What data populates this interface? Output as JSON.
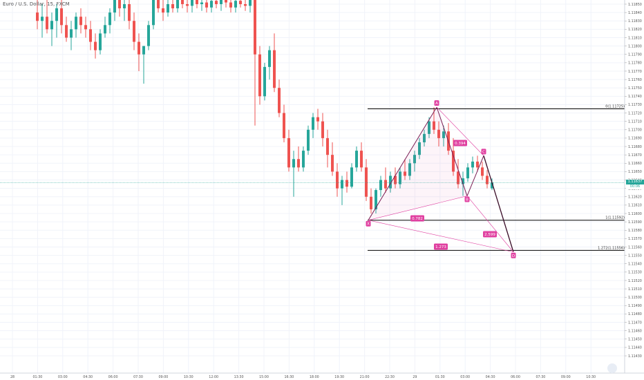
{
  "header": {
    "symbol_title": "Euro / U.S. Dollar, 15, FXCM"
  },
  "price_scale": {
    "ticks": [
      "1.11850",
      "1.11840",
      "1.11830",
      "1.11820",
      "1.11810",
      "1.11800",
      "1.11790",
      "1.11780",
      "1.11770",
      "1.11760",
      "1.11750",
      "1.11740",
      "1.11730",
      "1.11720",
      "1.11710",
      "1.11700",
      "1.11690",
      "1.11680",
      "1.11670",
      "1.11660",
      "1.11650",
      "1.11640",
      "1.11630",
      "1.11620",
      "1.11610",
      "1.11600",
      "1.11590",
      "1.11580",
      "1.11570",
      "1.11560",
      "1.11550",
      "1.11540",
      "1.11530",
      "1.11520",
      "1.11510",
      "1.11500",
      "1.11490",
      "1.11480",
      "1.11470",
      "1.11460",
      "1.11450",
      "1.11440",
      "1.11430"
    ],
    "current_price": "1.11637",
    "countdown": "00:06",
    "colors": {
      "up": "#26a69a",
      "down": "#ef5350"
    }
  },
  "time_scale": {
    "ticks": [
      "28",
      "01:30",
      "03:00",
      "04:30",
      "06:00",
      "07:30",
      "09:00",
      "10:30",
      "12:00",
      "13:30",
      "15:00",
      "16:30",
      "18:00",
      "19:30",
      "21:00",
      "22:30",
      "29",
      "01:30",
      "03:00",
      "04:30",
      "06:00",
      "07:30",
      "09:00",
      "10:30"
    ]
  },
  "levels": [
    {
      "label": "0(1.11725)",
      "price": 1.11725
    },
    {
      "label": "1(1.11592)",
      "price": 1.11592
    },
    {
      "label": "1.272(1.11556)",
      "price": 1.11556
    }
  ],
  "pattern": {
    "points": [
      {
        "name": "X",
        "price": 1.11592
      },
      {
        "name": "A",
        "price": 1.11727
      },
      {
        "name": "B",
        "price": 1.11621
      },
      {
        "name": "C",
        "price": 1.11669
      },
      {
        "name": "D",
        "price": 1.11554
      }
    ],
    "ratios": [
      {
        "label": "0.394",
        "legs": "A-C"
      },
      {
        "label": "0.782",
        "legs": "X-B"
      },
      {
        "label": "2.599",
        "legs": "B-D"
      },
      {
        "label": "1.273",
        "legs": "X-D"
      }
    ],
    "color": "#e040a0"
  },
  "chart_data": {
    "type": "candlestick",
    "title": "Euro / U.S. Dollar, 15, FXCM",
    "ylim": [
      1.1143,
      1.1186
    ],
    "candles": [
      [
        1.1184,
        1.1186,
        1.1182,
        1.1183
      ],
      [
        1.1183,
        1.1185,
        1.1181,
        1.11835
      ],
      [
        1.11835,
        1.1186,
        1.11815,
        1.1182
      ],
      [
        1.1182,
        1.1184,
        1.118,
        1.1183
      ],
      [
        1.1183,
        1.1185,
        1.1181,
        1.11845
      ],
      [
        1.11845,
        1.11855,
        1.11815,
        1.11825
      ],
      [
        1.11825,
        1.11835,
        1.11805,
        1.1181
      ],
      [
        1.1181,
        1.1183,
        1.11795,
        1.1182
      ],
      [
        1.1182,
        1.1184,
        1.1181,
        1.11835
      ],
      [
        1.11835,
        1.11845,
        1.11815,
        1.11825
      ],
      [
        1.11825,
        1.11835,
        1.1181,
        1.1182
      ],
      [
        1.1182,
        1.1183,
        1.11795,
        1.11805
      ],
      [
        1.11805,
        1.11815,
        1.11785,
        1.11795
      ],
      [
        1.11795,
        1.1182,
        1.1179,
        1.11815
      ],
      [
        1.11815,
        1.11835,
        1.1181,
        1.11825
      ],
      [
        1.11825,
        1.11845,
        1.11815,
        1.1184
      ],
      [
        1.1184,
        1.1186,
        1.1183,
        1.11855
      ],
      [
        1.11855,
        1.11865,
        1.11835,
        1.11845
      ],
      [
        1.11845,
        1.1186,
        1.1183,
        1.1185
      ],
      [
        1.1185,
        1.11855,
        1.1182,
        1.1183
      ],
      [
        1.1183,
        1.1184,
        1.11795,
        1.11805
      ],
      [
        1.11805,
        1.11815,
        1.1177,
        1.1179
      ],
      [
        1.1179,
        1.118,
        1.11755,
        1.118
      ],
      [
        1.118,
        1.1183,
        1.11795,
        1.11825
      ],
      [
        1.11825,
        1.1186,
        1.1182,
        1.11855
      ],
      [
        1.11855,
        1.1187,
        1.1184,
        1.11845
      ],
      [
        1.11845,
        1.11855,
        1.1183,
        1.1184
      ],
      [
        1.1184,
        1.1186,
        1.11835,
        1.1185
      ],
      [
        1.1185,
        1.1186,
        1.1184,
        1.11845
      ],
      [
        1.11845,
        1.1186,
        1.1184,
        1.11855
      ],
      [
        1.11855,
        1.11865,
        1.11845,
        1.1185
      ],
      [
        1.1185,
        1.1186,
        1.1184,
        1.11848
      ],
      [
        1.11848,
        1.11865,
        1.1184,
        1.11855
      ],
      [
        1.11855,
        1.11865,
        1.11845,
        1.1185
      ],
      [
        1.1185,
        1.1186,
        1.11842,
        1.11852
      ],
      [
        1.11852,
        1.11862,
        1.1184,
        1.11846
      ],
      [
        1.11846,
        1.1186,
        1.1184,
        1.11854
      ],
      [
        1.11854,
        1.11865,
        1.11845,
        1.1185
      ],
      [
        1.1185,
        1.1186,
        1.11842,
        1.11856
      ],
      [
        1.11856,
        1.11866,
        1.11846,
        1.11852
      ],
      [
        1.11852,
        1.11862,
        1.1184,
        1.11846
      ],
      [
        1.11846,
        1.11858,
        1.1184,
        1.11854
      ],
      [
        1.11854,
        1.11864,
        1.11846,
        1.1185
      ],
      [
        1.1185,
        1.1186,
        1.11842,
        1.11848
      ],
      [
        1.11848,
        1.11858,
        1.1184,
        1.11855
      ],
      [
        1.11855,
        1.11862,
        1.11705,
        1.1179
      ],
      [
        1.1179,
        1.118,
        1.1173,
        1.1174
      ],
      [
        1.1174,
        1.1178,
        1.11735,
        1.11775
      ],
      [
        1.11775,
        1.118,
        1.1176,
        1.11795
      ],
      [
        1.11795,
        1.11815,
        1.11745,
        1.1175
      ],
      [
        1.1175,
        1.1176,
        1.11715,
        1.1172
      ],
      [
        1.1172,
        1.1173,
        1.11685,
        1.1169
      ],
      [
        1.1169,
        1.117,
        1.1165,
        1.11655
      ],
      [
        1.11655,
        1.11675,
        1.1162,
        1.11665
      ],
      [
        1.11665,
        1.1168,
        1.1165,
        1.11655
      ],
      [
        1.11655,
        1.1168,
        1.1165,
        1.11675
      ],
      [
        1.11675,
        1.11705,
        1.1167,
        1.117
      ],
      [
        1.117,
        1.1172,
        1.1169,
        1.11715
      ],
      [
        1.11715,
        1.11725,
        1.117,
        1.1171
      ],
      [
        1.1171,
        1.1172,
        1.1168,
        1.1169
      ],
      [
        1.1169,
        1.117,
        1.11655,
        1.1167
      ],
      [
        1.1167,
        1.11685,
        1.11645,
        1.1165
      ],
      [
        1.1165,
        1.1166,
        1.1162,
        1.1163
      ],
      [
        1.1163,
        1.11645,
        1.1161,
        1.1164
      ],
      [
        1.1164,
        1.1165,
        1.11625,
        1.11632
      ],
      [
        1.11632,
        1.1166,
        1.1163,
        1.11655
      ],
      [
        1.11655,
        1.1168,
        1.1165,
        1.11675
      ],
      [
        1.11675,
        1.11685,
        1.1165,
        1.11655
      ],
      [
        1.11655,
        1.11665,
        1.11615,
        1.1162
      ],
      [
        1.1162,
        1.1163,
        1.116,
        1.11605
      ],
      [
        1.11605,
        1.1163,
        1.116,
        1.11628
      ],
      [
        1.11628,
        1.11645,
        1.1162,
        1.1164
      ],
      [
        1.1164,
        1.11655,
        1.11625,
        1.1163
      ],
      [
        1.1163,
        1.1165,
        1.11625,
        1.11645
      ],
      [
        1.11645,
        1.11655,
        1.1163,
        1.11635
      ],
      [
        1.11635,
        1.11655,
        1.1163,
        1.1165
      ],
      [
        1.1165,
        1.11665,
        1.1164,
        1.11645
      ],
      [
        1.11645,
        1.11665,
        1.1164,
        1.1166
      ],
      [
        1.1166,
        1.11675,
        1.1165,
        1.1167
      ],
      [
        1.1167,
        1.1169,
        1.11665,
        1.11685
      ],
      [
        1.11685,
        1.117,
        1.1168,
        1.11695
      ],
      [
        1.11695,
        1.11715,
        1.1169,
        1.1171
      ],
      [
        1.1171,
        1.11727,
        1.11695,
        1.117
      ],
      [
        1.117,
        1.1171,
        1.1168,
        1.1169
      ],
      [
        1.1169,
        1.11705,
        1.1168,
        1.11698
      ],
      [
        1.11698,
        1.11708,
        1.1167,
        1.11675
      ],
      [
        1.11675,
        1.1169,
        1.11645,
        1.1165
      ],
      [
        1.1165,
        1.11665,
        1.1163,
        1.11635
      ],
      [
        1.11635,
        1.1165,
        1.11621,
        1.11642
      ],
      [
        1.11642,
        1.1166,
        1.11638,
        1.11655
      ],
      [
        1.11655,
        1.11668,
        1.11648,
        1.11662
      ],
      [
        1.11662,
        1.11669,
        1.1165,
        1.11655
      ],
      [
        1.11655,
        1.11662,
        1.1164,
        1.11645
      ],
      [
        1.11645,
        1.11652,
        1.1163,
        1.11635
      ],
      [
        1.1163,
        1.11642,
        1.11628,
        1.11637
      ]
    ]
  }
}
